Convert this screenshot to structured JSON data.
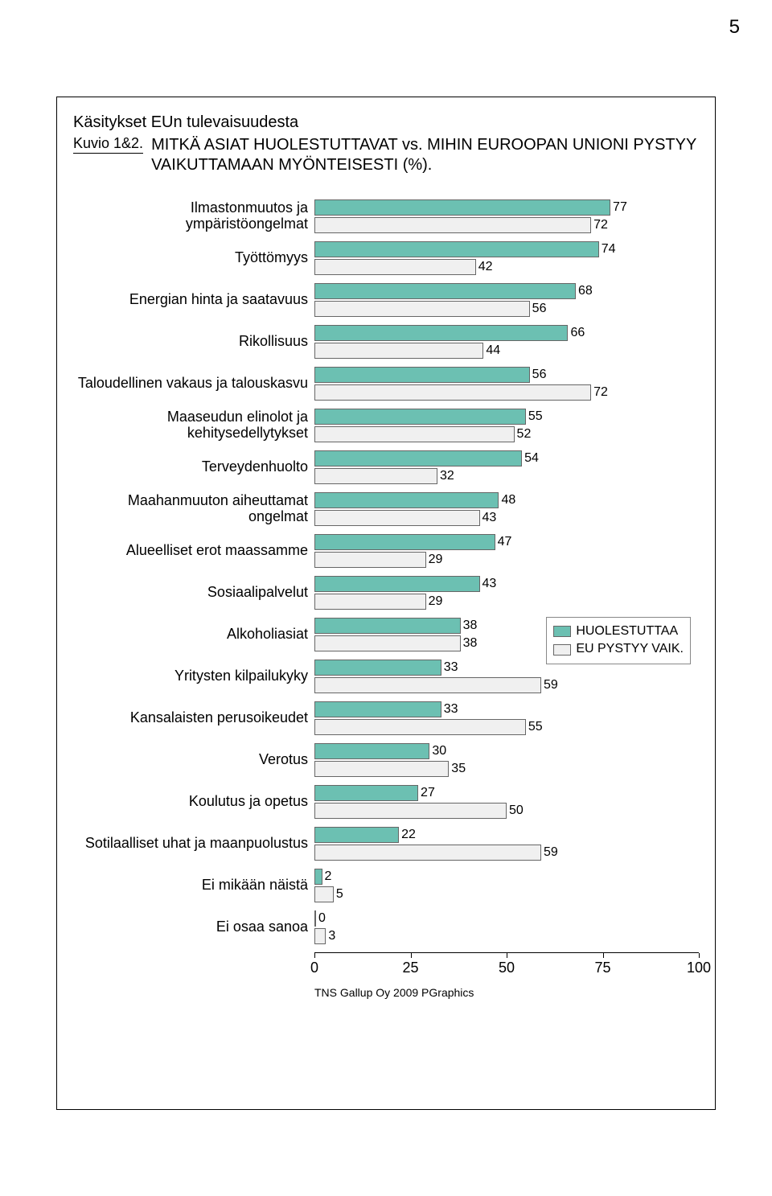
{
  "page_number": "5",
  "header": {
    "supertitle": "Käsitykset EUn tulevaisuudesta",
    "kuvio_label": "Kuvio 1&2.",
    "main_title": "MITKÄ ASIAT HUOLESTUTTAVAT vs. MIHIN EUROOPAN UNIONI PYSTYY VAIKUTTAMAAN MYÖNTEISESTI (%)."
  },
  "chart": {
    "type": "bar",
    "xlim": [
      0,
      100
    ],
    "xtick_step": 25,
    "xticks": [
      0,
      25,
      50,
      75,
      100
    ],
    "tick_fontsize": 18,
    "label_fontsize": 18,
    "value_fontsize": 16,
    "series_colors": [
      "#6cc0b2",
      "#f0f0f0"
    ],
    "border_color": "#666666",
    "background_color": "#ffffff",
    "legend": {
      "labels": [
        "HUOLESTUTTAA",
        "EU PYSTYY VAIK."
      ],
      "colors": [
        "#6cc0b2",
        "#f0f0f0"
      ],
      "top_row_index": 10
    },
    "categories": [
      {
        "label": "Ilmastonmuutos ja ympäristöongelmat",
        "values": [
          77,
          72
        ]
      },
      {
        "label": "Työttömyys",
        "values": [
          74,
          42
        ]
      },
      {
        "label": "Energian hinta ja saatavuus",
        "values": [
          68,
          56
        ]
      },
      {
        "label": "Rikollisuus",
        "values": [
          66,
          44
        ]
      },
      {
        "label": "Taloudellinen vakaus ja talouskasvu",
        "values": [
          56,
          72
        ]
      },
      {
        "label": "Maaseudun elinolot ja kehitysedellytykset",
        "values": [
          55,
          52
        ]
      },
      {
        "label": "Terveydenhuolto",
        "values": [
          54,
          32
        ]
      },
      {
        "label": "Maahanmuuton aiheuttamat ongelmat",
        "values": [
          48,
          43
        ]
      },
      {
        "label": "Alueelliset erot maassamme",
        "values": [
          47,
          29
        ]
      },
      {
        "label": "Sosiaalipalvelut",
        "values": [
          43,
          29
        ]
      },
      {
        "label": "Alkoholiasiat",
        "values": [
          38,
          38
        ]
      },
      {
        "label": "Yritysten kilpailukyky",
        "values": [
          33,
          59
        ]
      },
      {
        "label": "Kansalaisten perusoikeudet",
        "values": [
          33,
          55
        ]
      },
      {
        "label": "Verotus",
        "values": [
          30,
          35
        ]
      },
      {
        "label": "Koulutus ja opetus",
        "values": [
          27,
          50
        ]
      },
      {
        "label": "Sotilaalliset uhat ja maanpuolustus",
        "values": [
          22,
          59
        ]
      },
      {
        "label": "Ei mikään näistä",
        "values": [
          2,
          5
        ]
      },
      {
        "label": "Ei osaa sanoa",
        "values": [
          0,
          3
        ]
      }
    ]
  },
  "footer": "TNS Gallup Oy 2009 PGraphics"
}
